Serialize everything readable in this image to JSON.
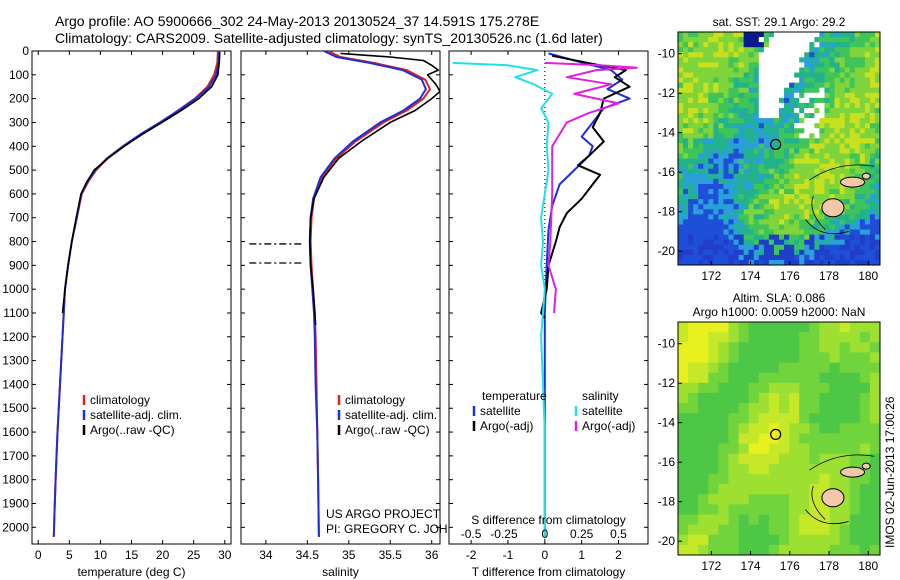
{
  "header": {
    "line1": "Argo profile: AO 5900666_302 24-May-2013 20130524_37 14.591S 175.278E",
    "line2": "Climatology: CARS2009. Satellite-adjusted climatology: synTS_20130526.nc (1.6d later)"
  },
  "colors": {
    "climatology": "#e02020",
    "satellite": "#1f2fd8",
    "argo": "#000000",
    "sat_salinity": "#22e0e8",
    "argo_adj_salinity": "#e020e0"
  },
  "chart_data": [
    {
      "id": "temperature",
      "type": "line",
      "xlabel": "temperature (deg C)",
      "ylabel": "",
      "xlim": [
        -1,
        31
      ],
      "ylim": [
        2070,
        0
      ],
      "xticks": [
        0,
        5,
        10,
        15,
        20,
        25,
        30
      ],
      "yticks": [
        0,
        100,
        200,
        300,
        400,
        500,
        600,
        700,
        800,
        900,
        1000,
        1100,
        1200,
        1300,
        1400,
        1500,
        1600,
        1700,
        1800,
        1900,
        2000
      ],
      "legend": {
        "position": "lower-left",
        "entries": [
          "climatology",
          "satellite-adj. clim.",
          "Argo(..raw -QC)"
        ]
      },
      "series": [
        {
          "name": "climatology",
          "color": "#e02020",
          "points": [
            [
              28.9,
              0
            ],
            [
              28.8,
              50
            ],
            [
              28.3,
              100
            ],
            [
              27.2,
              150
            ],
            [
              25.2,
              200
            ],
            [
              22.5,
              250
            ],
            [
              19.6,
              300
            ],
            [
              16.6,
              350
            ],
            [
              13.8,
              400
            ],
            [
              11.2,
              450
            ],
            [
              9.3,
              500
            ],
            [
              8.0,
              550
            ],
            [
              7.0,
              600
            ],
            [
              6.2,
              700
            ],
            [
              5.4,
              800
            ],
            [
              4.8,
              900
            ],
            [
              4.3,
              1000
            ],
            [
              3.9,
              1200
            ],
            [
              3.5,
              1400
            ],
            [
              3.1,
              1600
            ],
            [
              2.8,
              1800
            ],
            [
              2.6,
              1950
            ],
            [
              2.5,
              2040
            ]
          ]
        },
        {
          "name": "satellite-adj. clim.",
          "color": "#1f2fd8",
          "points": [
            [
              29.1,
              0
            ],
            [
              29.0,
              50
            ],
            [
              28.6,
              100
            ],
            [
              27.5,
              150
            ],
            [
              25.3,
              200
            ],
            [
              22.6,
              250
            ],
            [
              19.6,
              300
            ],
            [
              16.4,
              350
            ],
            [
              13.6,
              400
            ],
            [
              11.1,
              450
            ],
            [
              9.2,
              500
            ],
            [
              7.9,
              550
            ],
            [
              6.9,
              600
            ],
            [
              6.2,
              700
            ],
            [
              5.4,
              800
            ],
            [
              4.8,
              900
            ],
            [
              4.3,
              1000
            ],
            [
              3.9,
              1200
            ],
            [
              3.5,
              1400
            ],
            [
              3.1,
              1600
            ],
            [
              2.8,
              1800
            ],
            [
              2.6,
              1950
            ],
            [
              2.5,
              2040
            ]
          ]
        },
        {
          "name": "Argo(..raw -QC)",
          "color": "#000000",
          "points": [
            [
              29.2,
              5
            ],
            [
              29.1,
              50
            ],
            [
              28.9,
              100
            ],
            [
              27.9,
              150
            ],
            [
              25.8,
              200
            ],
            [
              23.0,
              250
            ],
            [
              19.9,
              300
            ],
            [
              16.7,
              350
            ],
            [
              13.8,
              400
            ],
            [
              11.2,
              450
            ],
            [
              9.0,
              500
            ],
            [
              7.8,
              550
            ],
            [
              6.9,
              600
            ],
            [
              6.1,
              700
            ],
            [
              5.4,
              800
            ],
            [
              4.8,
              900
            ],
            [
              4.3,
              1000
            ],
            [
              3.9,
              1100
            ]
          ]
        }
      ]
    },
    {
      "id": "salinity",
      "type": "line",
      "xlabel": "salinity",
      "ylabel": "",
      "xlim": [
        33.7,
        36.1
      ],
      "ylim": [
        2070,
        0
      ],
      "xticks": [
        34,
        34.5,
        35,
        35.5,
        36
      ],
      "legend": {
        "position": "lower-right",
        "entries": [
          "climatology",
          "satellite-adj. clim.",
          "Argo(..raw -QC)"
        ]
      },
      "annotation": [
        "US ARGO PROJECT",
        "PI: GREGORY C. JOHNSON"
      ],
      "series": [
        {
          "name": "climatology",
          "color": "#e02020",
          "points": [
            [
              34.75,
              0
            ],
            [
              34.9,
              25
            ],
            [
              35.3,
              50
            ],
            [
              35.7,
              80
            ],
            [
              35.92,
              120
            ],
            [
              35.98,
              160
            ],
            [
              35.9,
              200
            ],
            [
              35.7,
              250
            ],
            [
              35.42,
              300
            ],
            [
              35.08,
              380
            ],
            [
              34.85,
              450
            ],
            [
              34.68,
              530
            ],
            [
              34.58,
              620
            ],
            [
              34.55,
              700
            ],
            [
              34.54,
              800
            ],
            [
              34.55,
              900
            ],
            [
              34.57,
              1000
            ],
            [
              34.59,
              1100
            ],
            [
              34.6,
              1200
            ],
            [
              34.61,
              1400
            ],
            [
              34.62,
              1600
            ],
            [
              34.63,
              1800
            ],
            [
              34.64,
              2040
            ]
          ]
        },
        {
          "name": "satellite-adj. clim.",
          "color": "#1f2fd8",
          "points": [
            [
              34.7,
              0
            ],
            [
              34.85,
              25
            ],
            [
              35.25,
              50
            ],
            [
              35.65,
              80
            ],
            [
              35.88,
              120
            ],
            [
              35.93,
              160
            ],
            [
              35.86,
              200
            ],
            [
              35.66,
              250
            ],
            [
              35.38,
              300
            ],
            [
              35.05,
              380
            ],
            [
              34.83,
              450
            ],
            [
              34.66,
              530
            ],
            [
              34.57,
              620
            ],
            [
              34.54,
              700
            ],
            [
              34.53,
              800
            ],
            [
              34.54,
              900
            ],
            [
              34.56,
              1000
            ],
            [
              34.58,
              1100
            ],
            [
              34.59,
              1200
            ],
            [
              34.6,
              1400
            ],
            [
              34.62,
              1600
            ],
            [
              34.63,
              1800
            ],
            [
              34.64,
              2040
            ]
          ]
        },
        {
          "name": "Argo(..raw -QC)",
          "color": "#000000",
          "points": [
            [
              34.9,
              10
            ],
            [
              35.5,
              25
            ],
            [
              35.9,
              40
            ],
            [
              36.0,
              60
            ],
            [
              36.08,
              80
            ],
            [
              35.95,
              100
            ],
            [
              36.0,
              120
            ],
            [
              36.05,
              140
            ],
            [
              36.1,
              170
            ],
            [
              36.0,
              200
            ],
            [
              35.8,
              250
            ],
            [
              35.5,
              300
            ],
            [
              35.15,
              380
            ],
            [
              34.88,
              450
            ],
            [
              34.7,
              530
            ],
            [
              34.58,
              620
            ],
            [
              34.54,
              700
            ],
            [
              34.53,
              800
            ],
            [
              34.54,
              900
            ],
            [
              34.57,
              1000
            ],
            [
              34.59,
              1100
            ],
            [
              34.6,
              1150
            ]
          ]
        }
      ],
      "dashed_segments": [
        {
          "depth": 810,
          "from": 33.8,
          "to": 34.45
        },
        {
          "depth": 890,
          "from": 33.8,
          "to": 34.45
        }
      ]
    },
    {
      "id": "difference",
      "type": "line",
      "xlabel": "T difference from climatology",
      "xlabel2": "S difference from climatology",
      "xlim": [
        -2.6,
        2.8
      ],
      "ylim": [
        2070,
        0
      ],
      "xticks": [
        -2,
        -1,
        0,
        1,
        2
      ],
      "xticks2": [
        -0.5,
        -0.25,
        0,
        0.25,
        0.5
      ],
      "legend": {
        "position": "lower-center",
        "col1_title": "temperature",
        "col2_title": "salinity",
        "entries": [
          "satellite",
          "Argo(-adj)",
          "satellite",
          "Argo(-adj)"
        ]
      },
      "series": [
        {
          "name": "satellite",
          "color": "#1f2fd8",
          "points": [
            [
              0.1,
              10
            ],
            [
              0.8,
              40
            ],
            [
              1.8,
              80
            ],
            [
              2.1,
              120
            ],
            [
              1.7,
              160
            ],
            [
              2.3,
              200
            ],
            [
              1.6,
              240
            ],
            [
              1.4,
              280
            ],
            [
              1.2,
              320
            ],
            [
              1.0,
              360
            ],
            [
              1.3,
              400
            ],
            [
              1.2,
              440
            ],
            [
              0.8,
              500
            ],
            [
              0.4,
              560
            ],
            [
              0.2,
              650
            ],
            [
              0.1,
              750
            ],
            [
              0.05,
              900
            ],
            [
              0.0,
              1100
            ],
            [
              0.0,
              1400
            ],
            [
              0.0,
              1800
            ],
            [
              0.0,
              2040
            ]
          ]
        },
        {
          "name": "Argo(-adj)",
          "color": "#000000",
          "points": [
            [
              0.2,
              20
            ],
            [
              1.5,
              60
            ],
            [
              2.2,
              80
            ],
            [
              1.9,
              110
            ],
            [
              2.3,
              150
            ],
            [
              1.6,
              200
            ],
            [
              1.5,
              260
            ],
            [
              1.3,
              320
            ],
            [
              1.6,
              380
            ],
            [
              1.2,
              440
            ],
            [
              0.9,
              480
            ],
            [
              1.5,
              520
            ],
            [
              1.3,
              560
            ],
            [
              1.0,
              620
            ],
            [
              0.6,
              680
            ],
            [
              0.4,
              740
            ],
            [
              0.3,
              800
            ],
            [
              0.1,
              900
            ],
            [
              0.05,
              1000
            ],
            [
              -0.1,
              1100
            ],
            [
              0.0,
              1120
            ]
          ]
        },
        {
          "name": "satellite",
          "color": "#22e0e8",
          "points": [
            [
              -2.5,
              50
            ],
            [
              -1.0,
              60
            ],
            [
              -0.2,
              80
            ],
            [
              -0.8,
              110
            ],
            [
              -0.3,
              140
            ],
            [
              0.2,
              180
            ],
            [
              -0.1,
              240
            ],
            [
              0.1,
              300
            ],
            [
              0.05,
              400
            ],
            [
              0.1,
              500
            ],
            [
              0.0,
              600
            ],
            [
              -0.1,
              700
            ],
            [
              -0.05,
              800
            ],
            [
              -0.1,
              900
            ],
            [
              0.0,
              1000
            ],
            [
              -0.1,
              1200
            ],
            [
              -0.05,
              1400
            ],
            [
              0.0,
              1600
            ],
            [
              0.0,
              1800
            ],
            [
              0.0,
              2040
            ]
          ]
        },
        {
          "name": "Argo(-adj)",
          "color": "#e020e0",
          "points": [
            [
              0.0,
              50
            ],
            [
              1.5,
              60
            ],
            [
              2.5,
              70
            ],
            [
              1.4,
              80
            ],
            [
              0.6,
              110
            ],
            [
              1.8,
              140
            ],
            [
              0.8,
              180
            ],
            [
              2.0,
              220
            ],
            [
              1.2,
              260
            ],
            [
              0.6,
              300
            ],
            [
              0.2,
              400
            ],
            [
              0.2,
              600
            ],
            [
              0.15,
              800
            ],
            [
              0.1,
              900
            ],
            [
              0.2,
              950
            ],
            [
              0.3,
              1000
            ],
            [
              0.25,
              1100
            ]
          ]
        }
      ]
    },
    {
      "id": "sst_map",
      "type": "heatmap",
      "title": "sat. SST: 29.1  Argo: 29.2",
      "xticks": [
        172,
        174,
        176,
        178,
        180
      ],
      "yticks": [
        -10,
        -12,
        -14,
        -16,
        -18,
        -20
      ],
      "xlim": [
        170.3,
        180.6
      ],
      "ylim": [
        -20.7,
        -8.9
      ],
      "marker": {
        "lon": 175.28,
        "lat": -14.59
      }
    },
    {
      "id": "sla_map",
      "type": "heatmap",
      "title_line1": "Altim. SLA: 0.086",
      "title_line2": "Argo h1000: 0.0059 h2000: NaN",
      "xticks": [
        172,
        174,
        176,
        178,
        180
      ],
      "yticks": [
        -10,
        -12,
        -14,
        -16,
        -18,
        -20
      ],
      "xlim": [
        170.3,
        180.6
      ],
      "ylim": [
        -20.7,
        -8.9
      ],
      "marker": {
        "lon": 175.28,
        "lat": -14.59
      }
    }
  ],
  "stamp": "IMOS 02-Jun-2013 17:00:26"
}
